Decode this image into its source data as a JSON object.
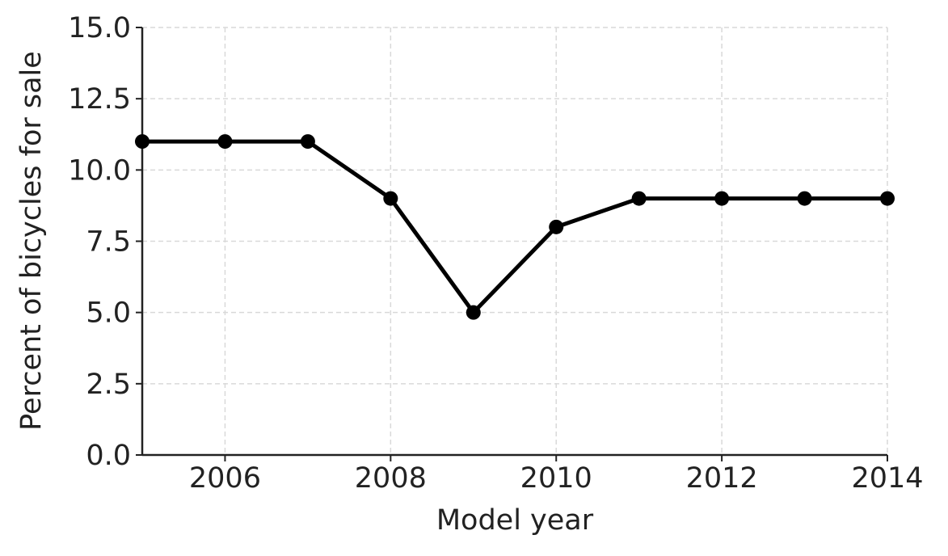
{
  "chart_data": {
    "type": "line",
    "x_label": "Model year",
    "y_label": "Percent of bicycles for sale",
    "x": [
      2005,
      2006,
      2007,
      2008,
      2009,
      2010,
      2011,
      2012,
      2013,
      2014
    ],
    "series": [
      {
        "color": "#000000",
        "values": [
          11,
          11,
          11,
          9,
          5,
          8,
          9,
          9,
          9,
          9
        ]
      }
    ],
    "xlim": [
      2005,
      2014
    ],
    "xticks": [
      2006,
      2008,
      2010,
      2012,
      2014
    ],
    "ylim": [
      0,
      15
    ],
    "yticks": [
      {
        "value": 0,
        "label": "0.0"
      },
      2.5,
      {
        "value": 5,
        "label": "5.0"
      },
      7.5,
      {
        "value": 10,
        "label": "10.0"
      },
      12.5,
      {
        "value": 15,
        "label": "15.0"
      }
    ],
    "grid": true
  }
}
